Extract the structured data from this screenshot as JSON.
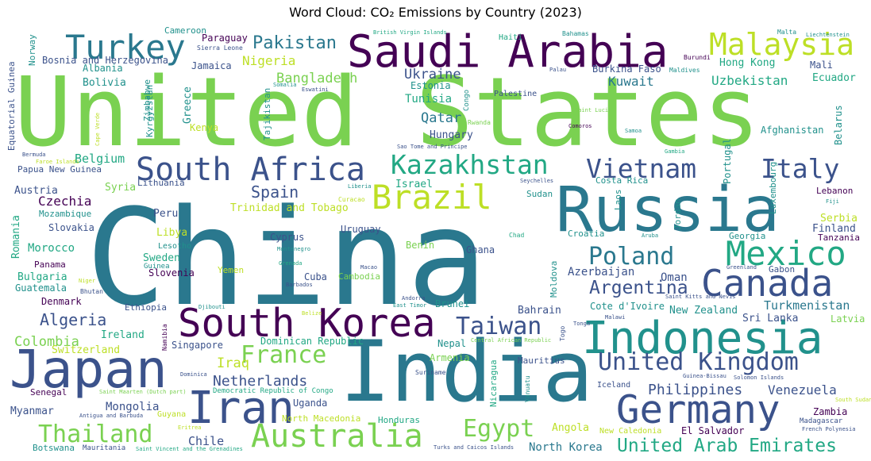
{
  "chart_data": {
    "type": "wordcloud",
    "title": "Word Cloud: CO₂ Emissions by Country (2023)",
    "colormap": "viridis",
    "words": [
      {
        "text": "China",
        "color": "#2a788e"
      },
      {
        "text": "United States",
        "color": "#7ad151"
      },
      {
        "text": "India",
        "color": "#2a788e"
      },
      {
        "text": "Russia",
        "color": "#2a788e"
      },
      {
        "text": "Japan",
        "color": "#3b528b"
      },
      {
        "text": "Iran",
        "color": "#3b528b"
      },
      {
        "text": "Saudi Arabia",
        "color": "#440154"
      },
      {
        "text": "Indonesia",
        "color": "#21918c"
      },
      {
        "text": "South Korea",
        "color": "#440154"
      },
      {
        "text": "Germany",
        "color": "#3b528b"
      },
      {
        "text": "Canada",
        "color": "#3b528b"
      },
      {
        "text": "Mexico",
        "color": "#22a884"
      },
      {
        "text": "Turkey",
        "color": "#2a788e"
      },
      {
        "text": "Brazil",
        "color": "#bddf26"
      },
      {
        "text": "Australia",
        "color": "#7ad151"
      },
      {
        "text": "South Africa",
        "color": "#3b528b"
      },
      {
        "text": "Malaysia",
        "color": "#bddf26"
      },
      {
        "text": "Kazakhstan",
        "color": "#22a884"
      },
      {
        "text": "Vietnam",
        "color": "#3b528b"
      },
      {
        "text": "Italy",
        "color": "#3b528b"
      },
      {
        "text": "United Kingdom",
        "color": "#3b528b"
      },
      {
        "text": "Poland",
        "color": "#2a788e"
      },
      {
        "text": "Thailand",
        "color": "#7ad151"
      },
      {
        "text": "France",
        "color": "#7ad151"
      },
      {
        "text": "Taiwan",
        "color": "#3b528b"
      },
      {
        "text": "Egypt",
        "color": "#7ad151"
      },
      {
        "text": "Argentina",
        "color": "#3b528b"
      },
      {
        "text": "United Arab Emirates",
        "color": "#22a884"
      },
      {
        "text": "Pakistan",
        "color": "#2a788e"
      },
      {
        "text": "Spain",
        "color": "#3b528b"
      },
      {
        "text": "Netherlands",
        "color": "#3b528b"
      },
      {
        "text": "Philippines",
        "color": "#3b528b"
      },
      {
        "text": "Algeria",
        "color": "#3b528b"
      },
      {
        "text": "Iraq",
        "color": "#bddf26"
      },
      {
        "text": "Bangladesh",
        "color": "#7ad151"
      },
      {
        "text": "Nigeria",
        "color": "#bddf26"
      },
      {
        "text": "Ukraine",
        "color": "#3b528b"
      },
      {
        "text": "Uzbekistan",
        "color": "#22a884"
      },
      {
        "text": "Kuwait",
        "color": "#2a788e"
      },
      {
        "text": "Qatar",
        "color": "#2a788e"
      },
      {
        "text": "Czechia",
        "color": "#440154"
      },
      {
        "text": "Belgium",
        "color": "#22a884"
      },
      {
        "text": "Colombia",
        "color": "#7ad151"
      },
      {
        "text": "Venezuela",
        "color": "#3b528b"
      },
      {
        "text": "Turkmenistan",
        "color": "#2a788e"
      },
      {
        "text": "Chile",
        "color": "#3b528b"
      },
      {
        "text": "North Korea",
        "color": "#2a788e"
      },
      {
        "text": "Mongolia",
        "color": "#3b528b"
      },
      {
        "text": "Hong Kong",
        "color": "#22a884"
      },
      {
        "text": "Oman",
        "color": "#3b528b"
      },
      {
        "text": "Azerbaijan",
        "color": "#3b528b"
      },
      {
        "text": "Austria",
        "color": "#3b528b"
      },
      {
        "text": "Morocco",
        "color": "#22a884"
      },
      {
        "text": "Bosnia and Herzegovina",
        "color": "#3b528b"
      },
      {
        "text": "Bolivia",
        "color": "#21918c"
      },
      {
        "text": "Albania",
        "color": "#21918c"
      },
      {
        "text": "Jamaica",
        "color": "#3b528b"
      },
      {
        "text": "Paraguay",
        "color": "#440154"
      },
      {
        "text": "Cameroon",
        "color": "#21918c"
      },
      {
        "text": "Sierra Leone",
        "color": "#3b528b"
      },
      {
        "text": "Norway",
        "color": "#21918c"
      },
      {
        "text": "Equatorial Guinea",
        "color": "#3b528b"
      },
      {
        "text": "Zimbabwe",
        "color": "#21918c"
      },
      {
        "text": "Kyrgyzstan",
        "color": "#21918c"
      },
      {
        "text": "Greece",
        "color": "#21918c"
      },
      {
        "text": "Kenya",
        "color": "#bddf26"
      },
      {
        "text": "Tajikistan",
        "color": "#21918c"
      },
      {
        "text": "Somalia",
        "color": "#21918c"
      },
      {
        "text": "Eswatini",
        "color": "#3b528b"
      },
      {
        "text": "Estonia",
        "color": "#21918c"
      },
      {
        "text": "Tunisia",
        "color": "#22a884"
      },
      {
        "text": "Congo",
        "color": "#21918c"
      },
      {
        "text": "Hungary",
        "color": "#3b528b"
      },
      {
        "text": "Rwanda",
        "color": "#7ad151"
      },
      {
        "text": "Sao Tome and Principe",
        "color": "#3b528b"
      },
      {
        "text": "British Virgin Islands",
        "color": "#22a884"
      },
      {
        "text": "Haiti",
        "color": "#22a884"
      },
      {
        "text": "Bahamas",
        "color": "#21918c"
      },
      {
        "text": "Malta",
        "color": "#21918c"
      },
      {
        "text": "Liechtenstein",
        "color": "#21918c"
      },
      {
        "text": "Burundi",
        "color": "#440154"
      },
      {
        "text": "Mali",
        "color": "#3b528b"
      },
      {
        "text": "Palau",
        "color": "#3b528b"
      },
      {
        "text": "Burkina Faso",
        "color": "#3b528b"
      },
      {
        "text": "Maldives",
        "color": "#21918c"
      },
      {
        "text": "Ecuador",
        "color": "#22a884"
      },
      {
        "text": "Belarus",
        "color": "#21918c"
      },
      {
        "text": "Palestine",
        "color": "#3b528b"
      },
      {
        "text": "Saint Lucia",
        "color": "#7ad151"
      },
      {
        "text": "Comoros",
        "color": "#440154"
      },
      {
        "text": "Samoa",
        "color": "#21918c"
      },
      {
        "text": "Afghanistan",
        "color": "#21918c"
      },
      {
        "text": "Gambia",
        "color": "#22a884"
      },
      {
        "text": "Portugal",
        "color": "#21918c"
      },
      {
        "text": "Luxembourg",
        "color": "#21918c"
      },
      {
        "text": "Bermuda",
        "color": "#3b528b"
      },
      {
        "text": "Faroe Islands",
        "color": "#bddf26"
      },
      {
        "text": "Cape Verde",
        "color": "#bddf26"
      },
      {
        "text": "Papua New Guinea",
        "color": "#3b528b"
      },
      {
        "text": "Syria",
        "color": "#7ad151"
      },
      {
        "text": "Lithuania",
        "color": "#3b528b"
      },
      {
        "text": "Liberia",
        "color": "#21918c"
      },
      {
        "text": "Seychelles",
        "color": "#3b528b"
      },
      {
        "text": "Israel",
        "color": "#22a884"
      },
      {
        "text": "Curacao",
        "color": "#bddf26"
      },
      {
        "text": "Sudan",
        "color": "#21918c"
      },
      {
        "text": "Costa Rica",
        "color": "#21918c"
      },
      {
        "text": "Laos",
        "color": "#21918c"
      },
      {
        "text": "Jordan",
        "color": "#21918c"
      },
      {
        "text": "Lebanon",
        "color": "#440154"
      },
      {
        "text": "Fiji",
        "color": "#21918c"
      },
      {
        "text": "Serbia",
        "color": "#bddf26"
      },
      {
        "text": "Finland",
        "color": "#3b528b"
      },
      {
        "text": "Tanzania",
        "color": "#440154"
      },
      {
        "text": "Romania",
        "color": "#22a884"
      },
      {
        "text": "Mozambique",
        "color": "#21918c"
      },
      {
        "text": "Slovakia",
        "color": "#3b528b"
      },
      {
        "text": "Peru",
        "color": "#3b528b"
      },
      {
        "text": "Libya",
        "color": "#bddf26"
      },
      {
        "text": "Trinidad and Tobago",
        "color": "#bddf26"
      },
      {
        "text": "Uruguay",
        "color": "#3b528b"
      },
      {
        "text": "Cyprus",
        "color": "#3b528b"
      },
      {
        "text": "Montenegro",
        "color": "#21918c"
      },
      {
        "text": "Chad",
        "color": "#22a884"
      },
      {
        "text": "Aruba",
        "color": "#21918c"
      },
      {
        "text": "Croatia",
        "color": "#21918c"
      },
      {
        "text": "Georgia",
        "color": "#21918c"
      },
      {
        "text": "Greenland",
        "color": "#3b528b"
      },
      {
        "text": "Gabon",
        "color": "#3b528b"
      },
      {
        "text": "Lesotho",
        "color": "#21918c"
      },
      {
        "text": "Guinea",
        "color": "#21918c"
      },
      {
        "text": "Sweden",
        "color": "#22a884"
      },
      {
        "text": "Slovenia",
        "color": "#440154"
      },
      {
        "text": "Panama",
        "color": "#440154"
      },
      {
        "text": "Bulgaria",
        "color": "#22a884"
      },
      {
        "text": "Guatemala",
        "color": "#21918c"
      },
      {
        "text": "Niger",
        "color": "#bddf26"
      },
      {
        "text": "Bhutan",
        "color": "#3b528b"
      },
      {
        "text": "Denmark",
        "color": "#440154"
      },
      {
        "text": "Yemen",
        "color": "#bddf26"
      },
      {
        "text": "Grenada",
        "color": "#22a884"
      },
      {
        "text": "Macao",
        "color": "#3b528b"
      },
      {
        "text": "Barbados",
        "color": "#3b528b"
      },
      {
        "text": "Cuba",
        "color": "#3b528b"
      },
      {
        "text": "Cambodia",
        "color": "#7ad151"
      },
      {
        "text": "Ghana",
        "color": "#3b528b"
      },
      {
        "text": "Moldova",
        "color": "#21918c"
      },
      {
        "text": "Benin",
        "color": "#7ad151"
      },
      {
        "text": "Andorra",
        "color": "#3b528b"
      },
      {
        "text": "East Timor",
        "color": "#21918c"
      },
      {
        "text": "Brunei",
        "color": "#21918c"
      },
      {
        "text": "Bahrain",
        "color": "#3b528b"
      },
      {
        "text": "Cote d'Ivoire",
        "color": "#21918c"
      },
      {
        "text": "New Zealand",
        "color": "#21918c"
      },
      {
        "text": "Saint Kitts and Nevis",
        "color": "#3b528b"
      },
      {
        "text": "Malawi",
        "color": "#3b528b"
      },
      {
        "text": "Sri Lanka",
        "color": "#3b528b"
      },
      {
        "text": "Latvia",
        "color": "#7ad151"
      },
      {
        "text": "Ethiopia",
        "color": "#3b528b"
      },
      {
        "text": "Djibouti",
        "color": "#21918c"
      },
      {
        "text": "Belize",
        "color": "#bddf26"
      },
      {
        "text": "Togo",
        "color": "#3b528b"
      },
      {
        "text": "Tonga",
        "color": "#3b528b"
      },
      {
        "text": "Ireland",
        "color": "#22a884"
      },
      {
        "text": "Switzerland",
        "color": "#bddf26"
      },
      {
        "text": "Namibia",
        "color": "#440154"
      },
      {
        "text": "Singapore",
        "color": "#3b528b"
      },
      {
        "text": "Dominican Republic",
        "color": "#22a884"
      },
      {
        "text": "Central African Republic",
        "color": "#7ad151"
      },
      {
        "text": "Nepal",
        "color": "#21918c"
      },
      {
        "text": "Armenia",
        "color": "#7ad151"
      },
      {
        "text": "Mauritius",
        "color": "#3b528b"
      },
      {
        "text": "Suriname",
        "color": "#3b528b"
      },
      {
        "text": "Nicaragua",
        "color": "#22a884"
      },
      {
        "text": "Vanuatu",
        "color": "#21918c"
      },
      {
        "text": "Dominica",
        "color": "#3b528b"
      },
      {
        "text": "Democratic Republic of Congo",
        "color": "#22a884"
      },
      {
        "text": "Iceland",
        "color": "#3b528b"
      },
      {
        "text": "Guinea-Bissau",
        "color": "#3b528b"
      },
      {
        "text": "Solomon Islands",
        "color": "#3b528b"
      },
      {
        "text": "Senegal",
        "color": "#440154"
      },
      {
        "text": "Saint Maarten (Dutch part)",
        "color": "#7ad151"
      },
      {
        "text": "Uganda",
        "color": "#3b528b"
      },
      {
        "text": "Myanmar",
        "color": "#3b528b"
      },
      {
        "text": "Antigua and Barbuda",
        "color": "#3b528b"
      },
      {
        "text": "Guyana",
        "color": "#bddf26"
      },
      {
        "text": "North Macedonia",
        "color": "#bddf26"
      },
      {
        "text": "Honduras",
        "color": "#22a884"
      },
      {
        "text": "Angola",
        "color": "#bddf26"
      },
      {
        "text": "New Caledonia",
        "color": "#bddf26"
      },
      {
        "text": "El Salvador",
        "color": "#440154"
      },
      {
        "text": "Zambia",
        "color": "#440154"
      },
      {
        "text": "Madagascar",
        "color": "#3b528b"
      },
      {
        "text": "French Polynesia",
        "color": "#3b528b"
      },
      {
        "text": "South Sudan",
        "color": "#bddf26"
      },
      {
        "text": "Eritrea",
        "color": "#bddf26"
      },
      {
        "text": "Botswana",
        "color": "#21918c"
      },
      {
        "text": "Mauritania",
        "color": "#3b528b"
      },
      {
        "text": "Saint Vincent and the Grenadines",
        "color": "#22a884"
      },
      {
        "text": "Turks and Caicos Islands",
        "color": "#3b528b"
      }
    ]
  }
}
